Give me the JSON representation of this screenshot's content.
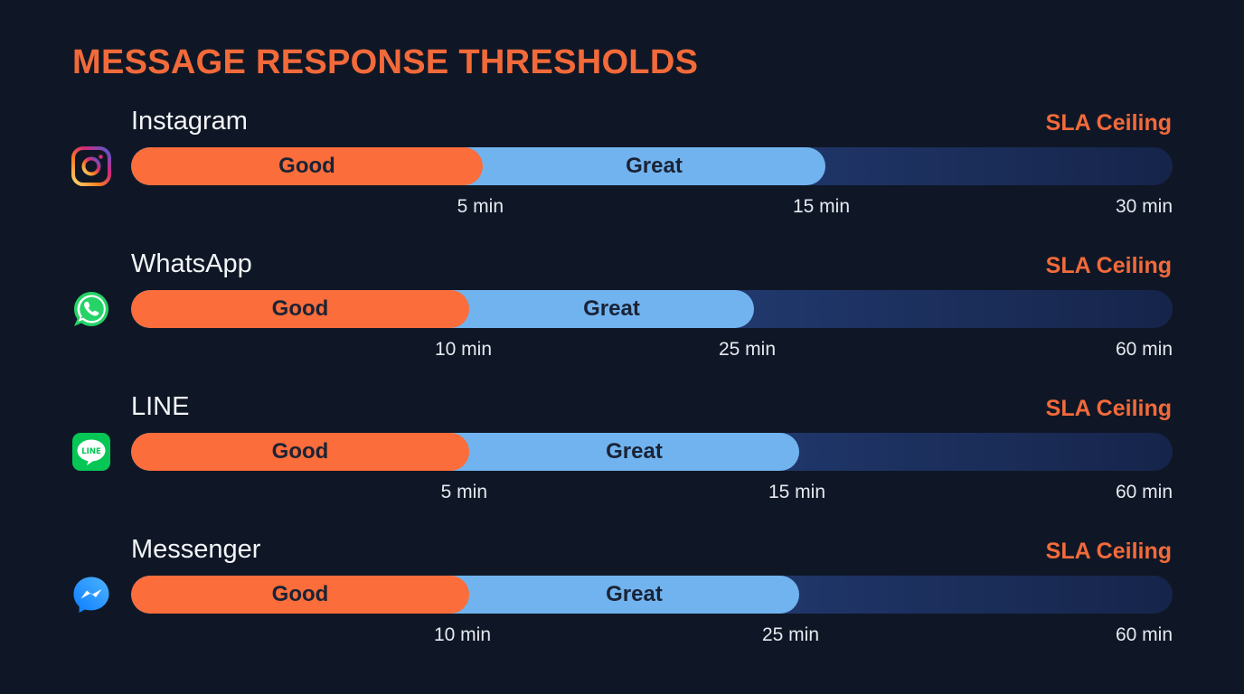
{
  "title": "MESSAGE RESPONSE THRESHOLDS",
  "colors": {
    "good": "#fb6d3a",
    "great": "#71b3ef",
    "track_start": "#2e5598",
    "track_end": "#16244a",
    "accent": "#f36a3a",
    "background": "#0f1726"
  },
  "chart_data": {
    "type": "bar",
    "title": "MESSAGE RESPONSE THRESHOLDS",
    "segment_labels": [
      "Good",
      "Great"
    ],
    "ceiling_label": "SLA Ceiling",
    "channels": [
      {
        "name": "Instagram",
        "icon": "instagram-icon",
        "good_max": 5,
        "great_max": 15,
        "sla_ceiling": 30,
        "tick_labels": [
          "5 min",
          "15 min",
          "30 min"
        ]
      },
      {
        "name": "WhatsApp",
        "icon": "whatsapp-icon",
        "good_max": 10,
        "great_max": 25,
        "sla_ceiling": 60,
        "tick_labels": [
          "10 min",
          "25 min",
          "60 min"
        ]
      },
      {
        "name": "LINE",
        "icon": "line-icon",
        "good_max": 5,
        "great_max": 15,
        "sla_ceiling": 60,
        "tick_labels": [
          "5 min",
          "15 min",
          "60 min"
        ]
      },
      {
        "name": "Messenger",
        "icon": "messenger-icon",
        "good_max": 10,
        "great_max": 25,
        "sla_ceiling": 60,
        "tick_labels": [
          "10 min",
          "25 min",
          "60 min"
        ]
      }
    ]
  }
}
